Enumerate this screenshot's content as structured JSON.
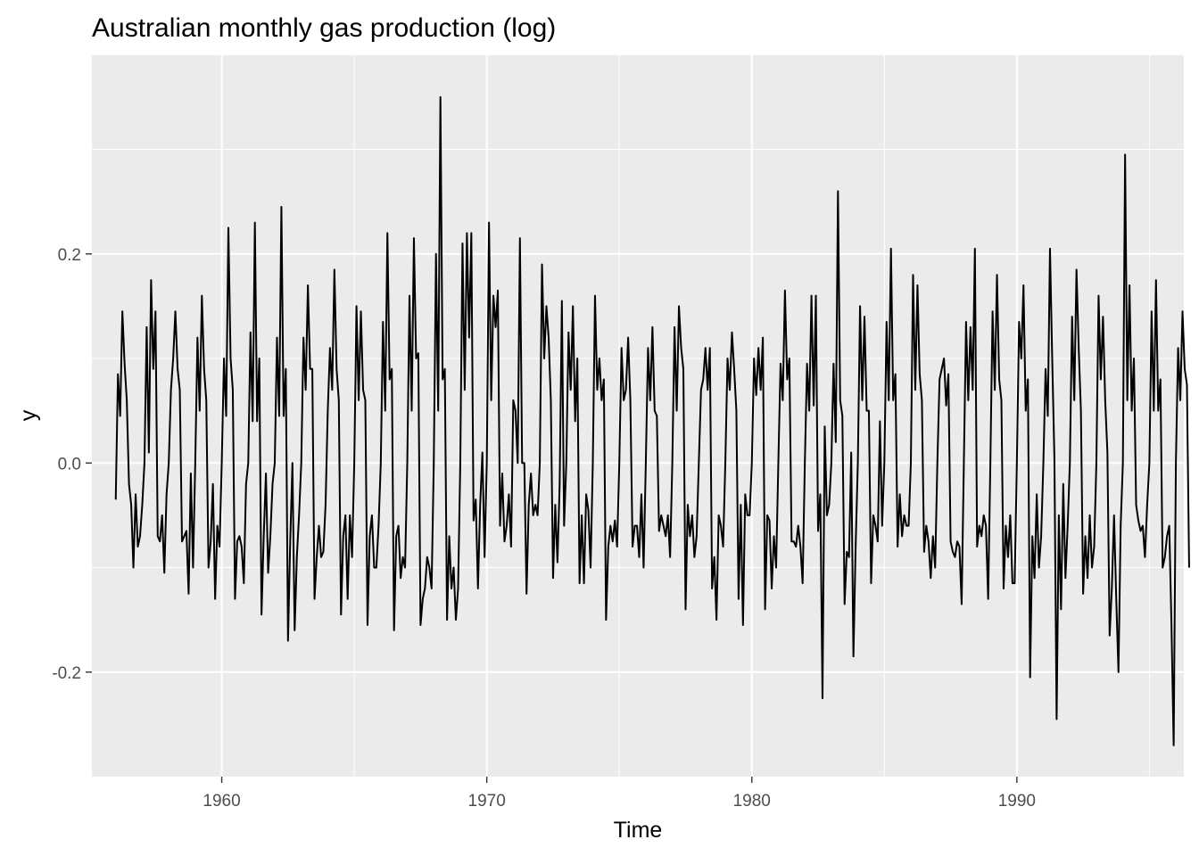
{
  "chart_data": {
    "type": "line",
    "title": "Australian monthly gas production (log)",
    "xlabel": "Time",
    "ylabel": "y",
    "xlim": [
      1955.1,
      1996.3
    ],
    "ylim": [
      -0.3,
      0.39
    ],
    "x_ticks": [
      1960,
      1970,
      1980,
      1990
    ],
    "x_tick_labels": [
      "1960",
      "1970",
      "1980",
      "1990"
    ],
    "y_ticks": [
      -0.2,
      0.0,
      0.2
    ],
    "y_tick_labels": [
      "-0.2",
      "0.0",
      "0.2"
    ],
    "grid": true,
    "legend": "none",
    "colors": {
      "panel": "#ebebeb",
      "grid": "#ffffff",
      "line": "#000000",
      "tick": "#4d4d4d"
    },
    "series": [
      {
        "start": 1956.0,
        "frequency": 12,
        "values": [
          -0.035,
          0.085,
          0.045,
          0.145,
          0.095,
          0.06,
          -0.02,
          -0.04,
          -0.1,
          -0.03,
          -0.08,
          -0.07,
          -0.04,
          0.0,
          0.13,
          0.01,
          0.175,
          0.09,
          0.145,
          -0.07,
          -0.075,
          -0.05,
          -0.105,
          -0.03,
          0.0,
          0.07,
          0.1,
          0.145,
          0.09,
          0.07,
          -0.075,
          -0.07,
          -0.065,
          -0.125,
          -0.01,
          -0.1,
          0.0,
          0.12,
          0.05,
          0.16,
          0.09,
          0.06,
          -0.1,
          -0.075,
          -0.02,
          -0.13,
          -0.06,
          -0.08,
          0.0,
          0.1,
          0.045,
          0.225,
          0.1,
          0.07,
          -0.13,
          -0.075,
          -0.07,
          -0.08,
          -0.115,
          -0.02,
          0.0,
          0.125,
          0.04,
          0.23,
          0.04,
          0.1,
          -0.145,
          -0.07,
          -0.01,
          -0.105,
          -0.07,
          -0.02,
          0.0,
          0.12,
          0.045,
          0.245,
          0.045,
          0.09,
          -0.17,
          -0.075,
          0.0,
          -0.16,
          -0.09,
          -0.05,
          0.0,
          0.12,
          0.07,
          0.17,
          0.09,
          0.09,
          -0.13,
          -0.09,
          -0.06,
          -0.09,
          -0.085,
          -0.04,
          0.05,
          0.11,
          0.07,
          0.185,
          0.09,
          0.06,
          -0.145,
          -0.07,
          -0.05,
          -0.13,
          -0.05,
          -0.09,
          0.0,
          0.15,
          0.06,
          0.145,
          0.07,
          0.06,
          -0.155,
          -0.07,
          -0.05,
          -0.1,
          -0.1,
          -0.06,
          0.0,
          0.135,
          0.05,
          0.22,
          0.08,
          0.09,
          -0.16,
          -0.07,
          -0.06,
          -0.11,
          -0.09,
          -0.1,
          0.0,
          0.16,
          0.05,
          0.215,
          0.1,
          0.105,
          -0.155,
          -0.13,
          -0.12,
          -0.09,
          -0.1,
          -0.12,
          0.0,
          0.2,
          0.05,
          0.35,
          0.08,
          0.09,
          -0.15,
          -0.07,
          -0.12,
          -0.1,
          -0.15,
          -0.12,
          0.0,
          0.21,
          0.07,
          0.22,
          0.12,
          0.22,
          -0.055,
          -0.035,
          -0.12,
          -0.04,
          0.01,
          -0.09,
          0.0,
          0.23,
          0.06,
          0.16,
          0.13,
          0.165,
          -0.06,
          -0.01,
          -0.075,
          -0.06,
          -0.03,
          -0.08,
          0.06,
          0.05,
          0.0,
          0.215,
          0.0,
          0.0,
          -0.125,
          -0.04,
          -0.01,
          -0.05,
          -0.04,
          -0.05,
          0.0,
          0.19,
          0.1,
          0.15,
          0.12,
          0.06,
          -0.11,
          -0.04,
          -0.095,
          -0.02,
          0.155,
          -0.06,
          0.0,
          0.125,
          0.07,
          0.15,
          0.04,
          0.1,
          -0.115,
          -0.05,
          -0.115,
          -0.03,
          -0.045,
          -0.1,
          0.0,
          0.16,
          0.07,
          0.1,
          0.06,
          0.08,
          -0.15,
          -0.08,
          -0.06,
          -0.075,
          -0.055,
          -0.08,
          0.0,
          0.11,
          0.06,
          0.07,
          0.12,
          0.06,
          -0.08,
          -0.06,
          -0.06,
          -0.09,
          -0.03,
          -0.1,
          0.0,
          0.11,
          0.06,
          0.13,
          0.05,
          0.045,
          -0.065,
          -0.05,
          -0.06,
          -0.07,
          -0.05,
          -0.09,
          0.0,
          0.13,
          0.05,
          0.15,
          0.11,
          0.09,
          -0.14,
          -0.04,
          -0.07,
          -0.05,
          -0.09,
          -0.07,
          0.0,
          0.07,
          0.08,
          0.11,
          0.07,
          0.11,
          -0.12,
          -0.09,
          -0.15,
          -0.05,
          -0.06,
          -0.08,
          0.0,
          0.1,
          0.07,
          0.125,
          0.09,
          0.05,
          -0.13,
          -0.04,
          -0.155,
          -0.03,
          -0.05,
          -0.05,
          0.0,
          0.1,
          0.065,
          0.11,
          0.07,
          0.12,
          -0.14,
          -0.05,
          -0.055,
          -0.12,
          -0.07,
          -0.1,
          0.0,
          0.095,
          0.06,
          0.165,
          0.08,
          0.1,
          -0.075,
          -0.075,
          -0.08,
          -0.06,
          -0.08,
          -0.115,
          0.0,
          0.095,
          0.05,
          0.16,
          0.055,
          0.16,
          -0.065,
          -0.03,
          -0.225,
          0.035,
          -0.05,
          -0.04,
          0.0,
          0.095,
          0.02,
          0.26,
          0.06,
          0.045,
          -0.135,
          -0.085,
          -0.09,
          0.01,
          -0.185,
          -0.08,
          0.0,
          0.15,
          0.06,
          0.14,
          0.05,
          0.05,
          -0.115,
          -0.05,
          -0.06,
          -0.075,
          0.04,
          -0.06,
          0.0,
          0.135,
          0.06,
          0.205,
          0.06,
          0.085,
          -0.08,
          -0.03,
          -0.07,
          -0.05,
          -0.06,
          -0.06,
          0.0,
          0.18,
          0.07,
          0.17,
          0.085,
          0.06,
          -0.085,
          -0.06,
          -0.075,
          -0.11,
          -0.07,
          -0.1,
          0.0,
          0.08,
          0.09,
          0.1,
          0.055,
          0.085,
          -0.075,
          -0.085,
          -0.09,
          -0.075,
          -0.08,
          -0.135,
          0.0,
          0.135,
          0.06,
          0.13,
          0.07,
          0.205,
          -0.08,
          -0.06,
          -0.07,
          -0.05,
          -0.06,
          -0.13,
          0.0,
          0.145,
          0.07,
          0.18,
          0.08,
          0.06,
          -0.12,
          -0.06,
          -0.09,
          -0.05,
          -0.115,
          -0.115,
          0.0,
          0.135,
          0.1,
          0.17,
          0.05,
          0.08,
          -0.205,
          -0.07,
          -0.11,
          -0.03,
          -0.1,
          -0.07,
          0.0,
          0.09,
          0.045,
          0.205,
          0.1,
          0.005,
          -0.245,
          -0.05,
          -0.14,
          -0.02,
          -0.11,
          -0.06,
          0.0,
          0.14,
          0.06,
          0.185,
          0.11,
          0.05,
          -0.125,
          -0.07,
          -0.11,
          -0.05,
          -0.1,
          -0.08,
          0.0,
          0.16,
          0.08,
          0.14,
          0.06,
          0.01,
          -0.165,
          -0.12,
          -0.05,
          -0.13,
          -0.2,
          -0.06,
          0.0,
          0.295,
          0.06,
          0.17,
          0.05,
          0.1,
          -0.04,
          -0.055,
          -0.065,
          -0.06,
          -0.09,
          -0.04,
          0.0,
          0.145,
          0.05,
          0.175,
          0.05,
          0.08,
          -0.1,
          -0.09,
          -0.07,
          -0.06,
          -0.155,
          -0.27,
          0.0,
          0.11,
          0.06,
          0.145,
          0.09,
          0.075,
          -0.1
        ]
      }
    ]
  }
}
